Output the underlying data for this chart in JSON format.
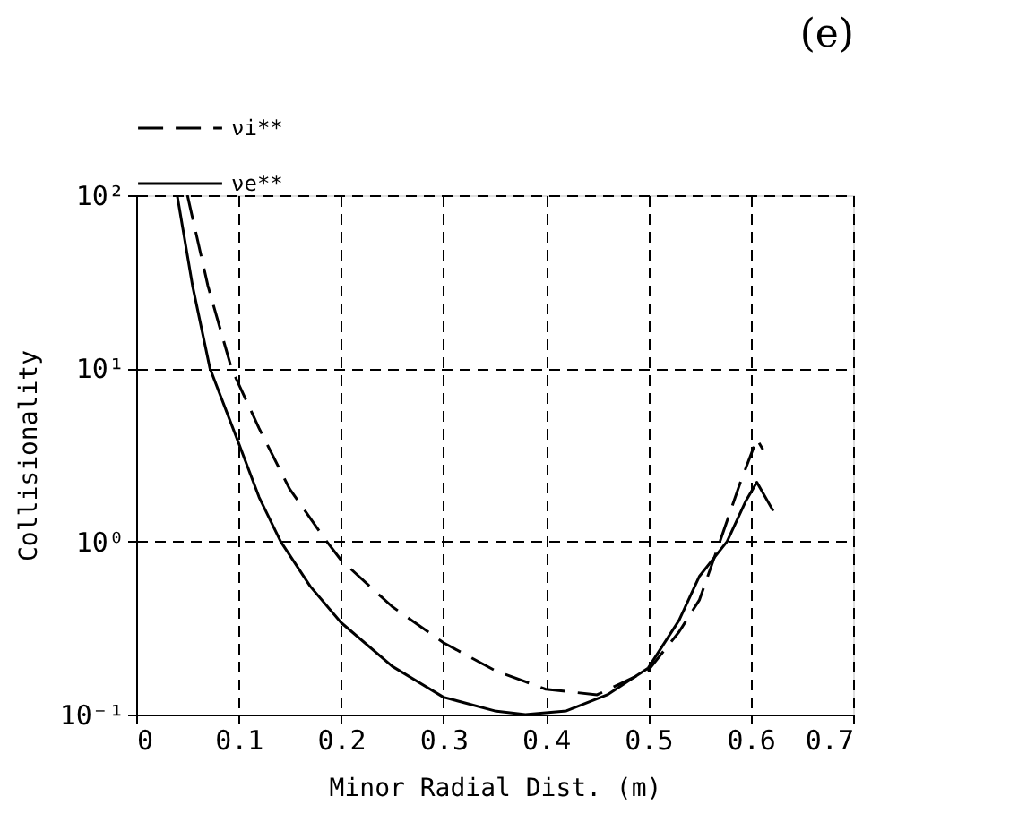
{
  "chart_data": {
    "type": "line",
    "title": "(e)",
    "xlabel": "Minor Radial Dist. (m)",
    "ylabel": "Collisionality",
    "series": [
      {
        "name": "νi**",
        "color": "#000000",
        "line_style": "dashed",
        "x": [
          0.05,
          0.07,
          0.093,
          0.12,
          0.15,
          0.186,
          0.2,
          0.25,
          0.3,
          0.35,
          0.4,
          0.45,
          0.5,
          0.53,
          0.55,
          0.57,
          0.59,
          0.606,
          0.612
        ],
        "values": [
          100,
          30,
          10,
          4.5,
          2,
          1,
          0.78,
          0.42,
          0.26,
          0.18,
          0.14,
          0.13,
          0.18,
          0.3,
          0.46,
          1.0,
          2.2,
          3.9,
          3.4
        ]
      },
      {
        "name": "νe**",
        "color": "#000000",
        "line_style": "solid",
        "x": [
          0.04,
          0.055,
          0.072,
          0.1,
          0.12,
          0.141,
          0.17,
          0.2,
          0.25,
          0.3,
          0.35,
          0.38,
          0.42,
          0.46,
          0.5,
          0.53,
          0.55,
          0.577,
          0.595,
          0.606,
          0.622
        ],
        "values": [
          100,
          30,
          10,
          3.7,
          1.8,
          1,
          0.55,
          0.34,
          0.19,
          0.126,
          0.105,
          0.1,
          0.105,
          0.13,
          0.186,
          0.35,
          0.63,
          1.0,
          1.7,
          2.2,
          1.5
        ]
      }
    ],
    "xlim": [
      0,
      0.7
    ],
    "xticks": [
      0,
      0.1,
      0.2,
      0.3,
      0.4,
      0.5,
      0.6,
      0.7
    ],
    "ylim": [
      0.1,
      100
    ],
    "yticks": [
      {
        "value": 0.1,
        "label": "10⁻¹"
      },
      {
        "value": 1,
        "label": "10⁰"
      },
      {
        "value": 10,
        "label": "10¹"
      },
      {
        "value": 100,
        "label": "10²"
      }
    ],
    "log": "y",
    "grid": true,
    "legend": "top left"
  }
}
